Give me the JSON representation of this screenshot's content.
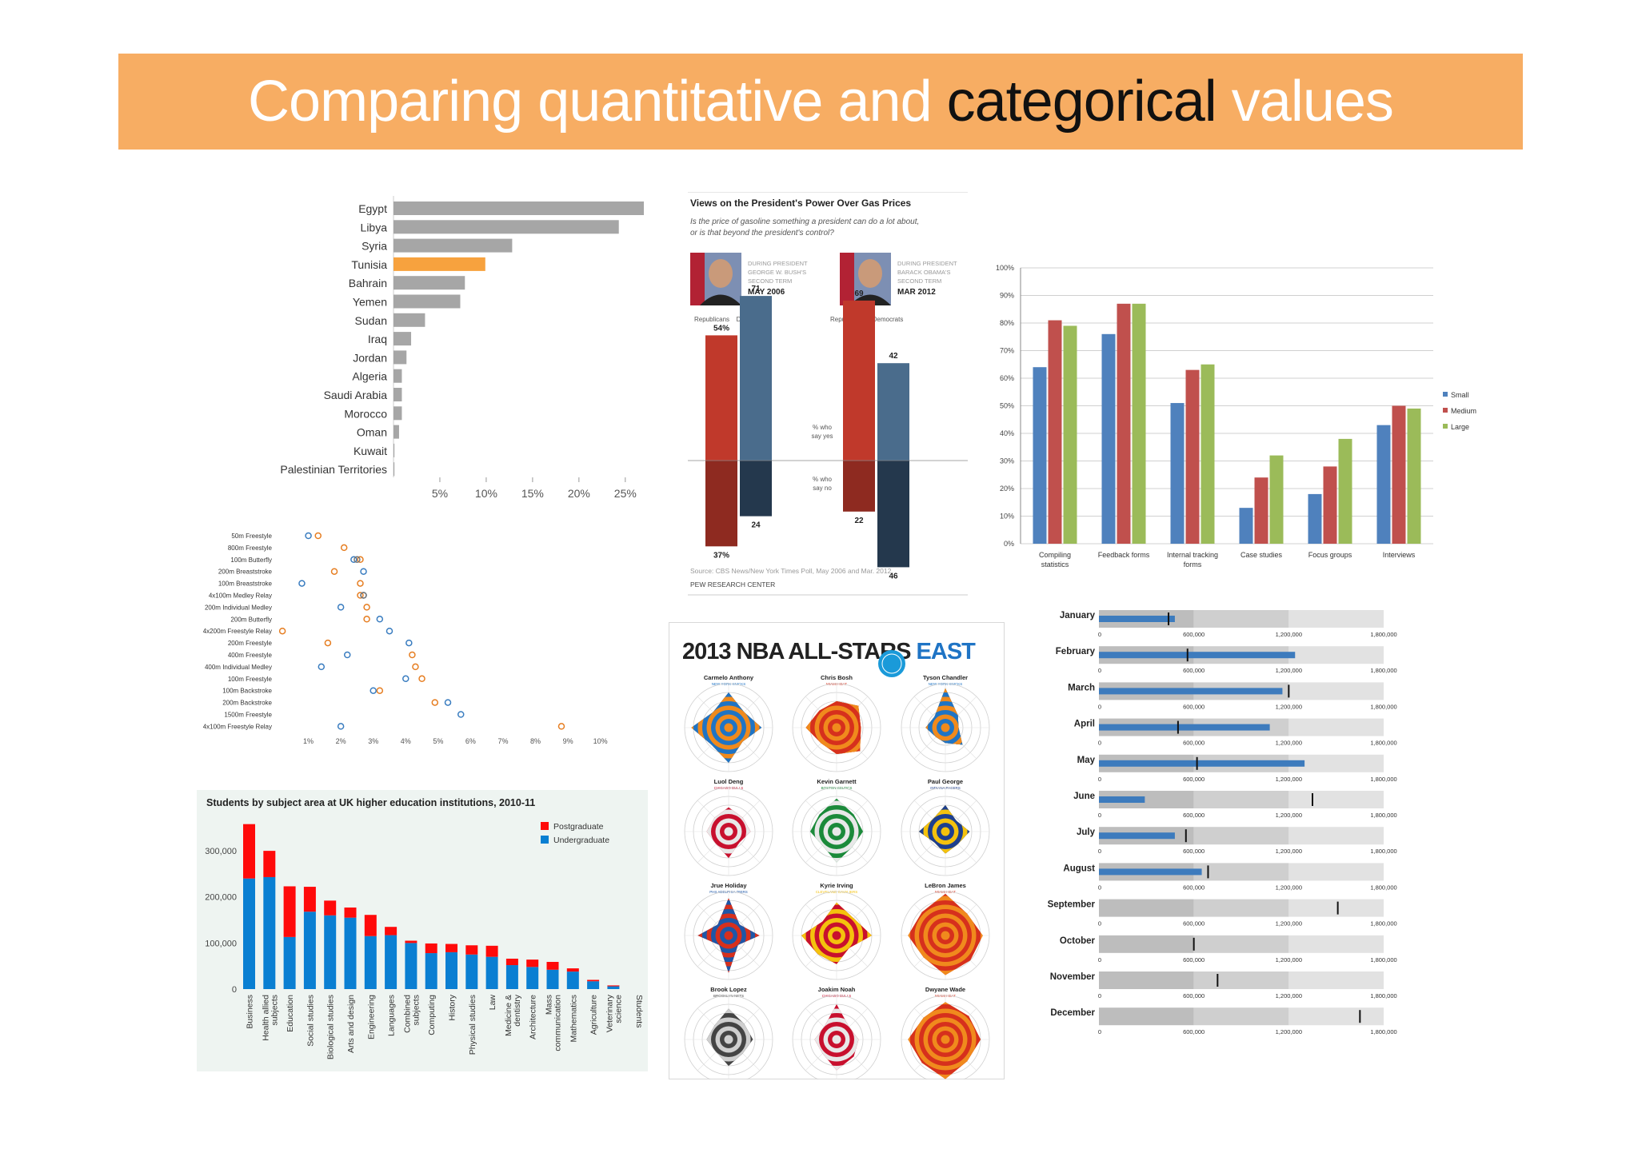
{
  "title": {
    "part1": "Comparing quantitative and ",
    "emph": "categorical",
    "part2": " values"
  },
  "chart_data": [
    {
      "id": "arab",
      "type": "bar",
      "orientation": "horizontal",
      "categories": [
        "Egypt",
        "Libya",
        "Syria",
        "Tunisia",
        "Bahrain",
        "Yemen",
        "Sudan",
        "Iraq",
        "Jordan",
        "Algeria",
        "Saudi Arabia",
        "Morocco",
        "Oman",
        "Kuwait",
        "Palestinian Territories"
      ],
      "values": [
        27,
        24.3,
        12.8,
        9.9,
        7.7,
        7.2,
        3.4,
        1.9,
        1.4,
        0.9,
        0.9,
        0.9,
        0.6,
        0.1,
        0.1
      ],
      "highlight": "Tunisia",
      "highlight_color": "#f7a23e",
      "bar_color": "#a6a6a6",
      "xticks": [
        "5%",
        "10%",
        "15%",
        "20%",
        "25%"
      ],
      "xlim": [
        0,
        27
      ]
    },
    {
      "id": "pew",
      "type": "bar",
      "title": "Views on the President's Power Over Gas Prices",
      "subtitle1": "Is the price of gasoline something a president can do a lot about,",
      "subtitle2": "or is that beyond the president's control?",
      "periods": [
        {
          "label1": "DURING PRESIDENT",
          "label2": "GEORGE W. BUSH'S",
          "label3": "SECOND TERM",
          "date": "MAY 2006"
        },
        {
          "label1": "DURING PRESIDENT",
          "label2": "BARACK OBAMA'S",
          "label3": "SECOND TERM",
          "date": "MAR 2012"
        }
      ],
      "series": [
        {
          "name": "Republicans",
          "yes": [
            54,
            69
          ],
          "no": [
            37,
            22
          ],
          "yes_labels": [
            "54%",
            "69"
          ],
          "no_labels": [
            "37%",
            "22"
          ]
        },
        {
          "name": "Democrats",
          "yes": [
            71,
            42
          ],
          "no": [
            24,
            46
          ],
          "yes_labels": [
            "71",
            "42"
          ],
          "no_labels": [
            "24",
            "46"
          ]
        }
      ],
      "yes_label1": "% who",
      "yes_label2": "say yes",
      "no_label1": "% who",
      "no_label2": "say no",
      "source": "Source: CBS News/New York Times Poll, May 2006 and Mar. 2012",
      "footer": "PEW RESEARCH CENTER",
      "colors": {
        "rep_yes": "#c0392b",
        "rep_no": "#8e2a20",
        "dem_yes": "#4a6c8c",
        "dem_no": "#24384d"
      }
    },
    {
      "id": "methods",
      "type": "bar",
      "categories": [
        "Compiling statistics",
        "Feedback forms",
        "Internal tracking forms",
        "Case studies",
        "Focus groups",
        "Interviews"
      ],
      "category_lines": [
        [
          "Compiling",
          "statistics"
        ],
        [
          "Feedback forms"
        ],
        [
          "Internal tracking",
          "forms"
        ],
        [
          "Case studies"
        ],
        [
          "Focus groups"
        ],
        [
          "Interviews"
        ]
      ],
      "series": [
        {
          "name": "Small",
          "values": [
            64,
            76,
            51,
            13,
            18,
            43
          ],
          "color": "#4f81bd"
        },
        {
          "name": "Medium",
          "values": [
            81,
            87,
            63,
            24,
            28,
            50
          ],
          "color": "#c0504d"
        },
        {
          "name": "Large",
          "values": [
            79,
            87,
            65,
            32,
            38,
            49
          ],
          "color": "#9bbb59"
        }
      ],
      "yticks": [
        "0%",
        "10%",
        "20%",
        "30%",
        "40%",
        "50%",
        "60%",
        "70%",
        "80%",
        "90%",
        "100%"
      ],
      "ylim": [
        0,
        100
      ],
      "legend": "right"
    },
    {
      "id": "swim",
      "type": "scatter",
      "categories": [
        "50m Freestyle",
        "800m Freestyle",
        "100m Butterfly",
        "200m Breaststroke",
        "100m Breaststroke",
        "4x100m Medley Relay",
        "200m Individual Medley",
        "200m Butterfly",
        "4x200m Freestyle Relay",
        "200m Freestyle",
        "400m Freestyle",
        "400m Individual Medley",
        "100m Freestyle",
        "100m Backstroke",
        "200m Backstroke",
        "1500m Freestyle",
        "4x100m Freestyle Relay"
      ],
      "series": [
        {
          "name": "",
          "color": "#e67e22",
          "values": [
            1.3,
            2.1,
            2.6,
            1.8,
            2.6,
            2.6,
            2.8,
            2.8,
            0.2,
            1.6,
            4.2,
            4.3,
            4.5,
            3.2,
            4.9,
            null,
            8.8
          ]
        },
        {
          "name": "",
          "color": "#3a7dc0",
          "values": [
            1.0,
            null,
            2.4,
            2.7,
            0.8,
            2.7,
            2.0,
            3.2,
            3.5,
            4.1,
            2.2,
            1.4,
            4.0,
            3.0,
            5.3,
            5.7,
            2.0
          ]
        },
        {
          "name": "",
          "color": "#777777",
          "values": [
            null,
            null,
            2.5,
            null,
            null,
            2.7,
            null,
            null,
            null,
            null,
            null,
            null,
            null,
            null,
            null,
            null,
            null
          ]
        }
      ],
      "xticks": [
        "1%",
        "2%",
        "3%",
        "4%",
        "5%",
        "6%",
        "7%",
        "8%",
        "9%",
        "10%"
      ],
      "xlim": [
        0,
        10.6
      ]
    },
    {
      "id": "uk",
      "type": "bar",
      "stacked": true,
      "title": "Students by subject area at UK higher education institutions, 2010-11",
      "categories": [
        "Business",
        "Health allied subjects",
        "Education",
        "Social studies",
        "Biological studies",
        "Arts and design",
        "Engineering",
        "Languages",
        "Combined subjects",
        "Computing",
        "History",
        "Physical studies",
        "Law",
        "Medicine & dentistry",
        "Architecture",
        "Mass communication",
        "Mathematics",
        "Agriculture",
        "Veterinary science"
      ],
      "category_lines": [
        [
          "Business"
        ],
        [
          "Health allied",
          "subjects"
        ],
        [
          "Education"
        ],
        [
          "Social studies"
        ],
        [
          "Biological studies"
        ],
        [
          "Arts and design"
        ],
        [
          "Engineering"
        ],
        [
          "Languages"
        ],
        [
          "Combined",
          "subjects"
        ],
        [
          "Computing"
        ],
        [
          "History"
        ],
        [
          "Physical studies"
        ],
        [
          "Law"
        ],
        [
          "Medicine &",
          "dentistry"
        ],
        [
          "Architecture"
        ],
        [
          "Mass",
          "communication"
        ],
        [
          "Mathematics"
        ],
        [
          "Agriculture"
        ],
        [
          "Veterinary",
          "science"
        ]
      ],
      "series": [
        {
          "name": "Undergraduate",
          "color": "#0a7fd2",
          "values": [
            240000,
            243000,
            113000,
            168000,
            160000,
            155000,
            115000,
            117000,
            100000,
            78000,
            80000,
            75000,
            70000,
            52000,
            48000,
            42000,
            38000,
            17000,
            6000
          ]
        },
        {
          "name": "Postgraduate",
          "color": "#ff0a0a",
          "values": [
            118000,
            57000,
            110000,
            54000,
            32000,
            22000,
            46000,
            18000,
            5000,
            21000,
            18000,
            20000,
            24000,
            14000,
            16000,
            17000,
            7000,
            3000,
            2000
          ]
        }
      ],
      "yticks": [
        "0",
        "100,000",
        "200,000",
        "300,000"
      ],
      "ylim": [
        0,
        380000
      ],
      "side_label": "Students",
      "legend": "top-right"
    },
    {
      "id": "nba",
      "type": "radar",
      "title_main": "2013 NBA ALL-STARS ",
      "title_emph": "EAST",
      "players": [
        {
          "name": "Carmelo Anthony",
          "team": "NEW YORK KNICKS",
          "colors": [
            "#1f74c5",
            "#f08a1d"
          ],
          "values": [
            0.8,
            0.5,
            0.75,
            0.45,
            0.8,
            0.55,
            0.85,
            0.5
          ]
        },
        {
          "name": "Chris Bosh",
          "team": "MIAMI HEAT",
          "colors": [
            "#d6301d",
            "#f08a1d"
          ],
          "values": [
            0.6,
            0.7,
            0.55,
            0.75,
            0.6,
            0.5,
            0.7,
            0.55
          ]
        },
        {
          "name": "Tyson Chandler",
          "team": "NEW YORK KNICKS",
          "colors": [
            "#1f74c5",
            "#f08a1d"
          ],
          "values": [
            0.9,
            0.4,
            0.3,
            0.55,
            0.35,
            0.3,
            0.45,
            0.35
          ]
        },
        {
          "name": "Luol Deng",
          "team": "CHICAGO BULLS",
          "colors": [
            "#c8102e",
            "#e8e8e8"
          ],
          "values": [
            0.55,
            0.45,
            0.5,
            0.35,
            0.6,
            0.4,
            0.5,
            0.45
          ]
        },
        {
          "name": "Kevin Garnett",
          "team": "BOSTON CELTICS",
          "colors": [
            "#1b8a3a",
            "#e8e8e8"
          ],
          "values": [
            0.75,
            0.55,
            0.6,
            0.5,
            0.7,
            0.45,
            0.6,
            0.55
          ]
        },
        {
          "name": "Paul George",
          "team": "INDIANA PACERS",
          "colors": [
            "#1d3f8f",
            "#f4c20d"
          ],
          "values": [
            0.6,
            0.35,
            0.55,
            0.4,
            0.5,
            0.35,
            0.6,
            0.4
          ]
        },
        {
          "name": "Jrue Holiday",
          "team": "PHILADELPHIA 76ERS",
          "colors": [
            "#1d57a8",
            "#d6301d"
          ],
          "values": [
            0.85,
            0.35,
            0.7,
            0.3,
            0.85,
            0.3,
            0.7,
            0.35
          ]
        },
        {
          "name": "Kyrie Irving",
          "team": "CLEVELAND CAVALIERS",
          "colors": [
            "#f4c20d",
            "#c8102e"
          ],
          "values": [
            0.75,
            0.55,
            0.8,
            0.4,
            0.65,
            0.6,
            0.8,
            0.45
          ]
        },
        {
          "name": "LeBron James",
          "team": "MIAMI HEAT",
          "colors": [
            "#d6301d",
            "#f08a1d"
          ],
          "values": [
            0.95,
            0.7,
            0.85,
            0.8,
            0.9,
            0.7,
            0.85,
            0.75
          ]
        },
        {
          "name": "Brook Lopez",
          "team": "BROOKLYN NETS",
          "colors": [
            "#444444",
            "#cfcfcf"
          ],
          "values": [
            0.7,
            0.5,
            0.55,
            0.45,
            0.6,
            0.4,
            0.5,
            0.45
          ]
        },
        {
          "name": "Joakim Noah",
          "team": "CHICAGO BULLS",
          "colors": [
            "#c8102e",
            "#e8e8e8"
          ],
          "values": [
            0.8,
            0.4,
            0.5,
            0.55,
            0.7,
            0.45,
            0.5,
            0.4
          ]
        },
        {
          "name": "Dwyane Wade",
          "team": "MIAMI HEAT",
          "colors": [
            "#d6301d",
            "#f08a1d"
          ],
          "values": [
            0.85,
            0.75,
            0.8,
            0.7,
            0.9,
            0.75,
            0.85,
            0.7
          ]
        }
      ]
    },
    {
      "id": "bullet",
      "type": "bullet",
      "categories": [
        "January",
        "February",
        "March",
        "April",
        "May",
        "June",
        "July",
        "August",
        "September",
        "October",
        "November",
        "December"
      ],
      "actual": [
        480000,
        1240000,
        1160000,
        1080000,
        1300000,
        290000,
        480000,
        650000,
        null,
        null,
        null,
        null
      ],
      "target": [
        440000,
        560000,
        1200000,
        500000,
        620000,
        1350000,
        550000,
        690000,
        1510000,
        600000,
        750000,
        1650000
      ],
      "bands": [
        600000,
        1200000,
        1800000
      ],
      "xticks": [
        "0",
        "600,000",
        "1,200,000",
        "1,800,000"
      ],
      "xlim": [
        0,
        1800000
      ],
      "colors": {
        "bar": "#3d7bbd",
        "marker": "#111111",
        "band1": "#bdbdbd",
        "band2": "#cfcfcf",
        "band3": "#e2e2e2"
      }
    }
  ]
}
